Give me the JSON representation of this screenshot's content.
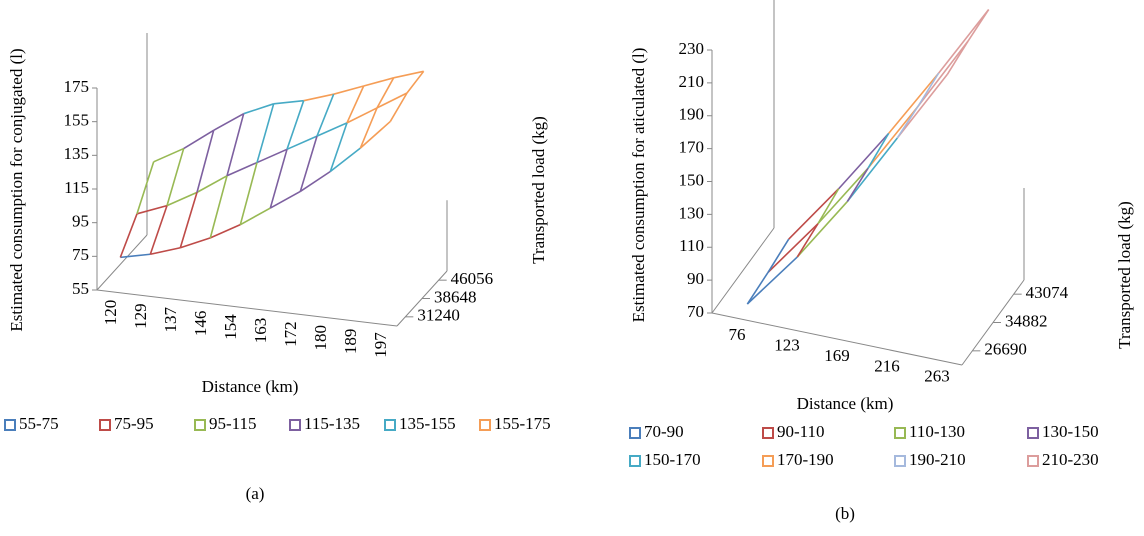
{
  "chart_data": [
    {
      "type": "surface",
      "y_label": "Estimated consumption for conjugated (l)",
      "x_label": "Distance (km)",
      "z_label": "Transported load (kg)",
      "caption": "(a)",
      "categories": [
        "120",
        "129",
        "137",
        "146",
        "154",
        "163",
        "172",
        "180",
        "189",
        "197"
      ],
      "z_categories": [
        "31240",
        "38648",
        "46056"
      ],
      "values": [
        [
          70,
          74,
          80,
          88,
          98,
          110,
          122,
          136,
          152,
          170
        ],
        [
          85,
          92,
          102,
          114,
          124,
          134,
          144,
          154,
          165,
          176
        ],
        [
          105,
          115,
          128,
          140,
          148,
          152,
          158,
          165,
          172,
          178
        ]
      ],
      "ylim": [
        55,
        175
      ],
      "yticks": [
        55,
        75,
        95,
        115,
        135,
        155,
        175
      ],
      "series": [
        {
          "name": "55-75",
          "color": "#4a7ebb"
        },
        {
          "name": "75-95",
          "color": "#be4b48"
        },
        {
          "name": "95-115",
          "color": "#98b954"
        },
        {
          "name": "115-135",
          "color": "#7d60a0"
        },
        {
          "name": "135-155",
          "color": "#46aac5"
        },
        {
          "name": "155-175",
          "color": "#f59d56"
        }
      ]
    },
    {
      "type": "surface",
      "y_label": "Estimated consumption for aticulated (l)",
      "x_label": "Distance (km)",
      "z_label": "Transported load (kg)",
      "caption": "(b)",
      "categories": [
        "76",
        "123",
        "169",
        "216",
        "263"
      ],
      "z_categories": [
        "26690",
        "34882",
        "43074"
      ],
      "values": [
        [
          70,
          105,
          145,
          190,
          235
        ],
        [
          72,
          108,
          148,
          192,
          238
        ],
        [
          75,
          112,
          152,
          195,
          240
        ]
      ],
      "ylim": [
        70,
        230
      ],
      "yticks": [
        70,
        90,
        110,
        130,
        150,
        170,
        190,
        210,
        230
      ],
      "series": [
        {
          "name": "70-90",
          "color": "#4a7ebb"
        },
        {
          "name": "90-110",
          "color": "#be4b48"
        },
        {
          "name": "110-130",
          "color": "#98b954"
        },
        {
          "name": "130-150",
          "color": "#7d60a0"
        },
        {
          "name": "150-170",
          "color": "#46aac5"
        },
        {
          "name": "170-190",
          "color": "#f59d56"
        },
        {
          "name": "190-210",
          "color": "#a5b9dd"
        },
        {
          "name": "210-230",
          "color": "#dc9d9c"
        }
      ]
    }
  ]
}
